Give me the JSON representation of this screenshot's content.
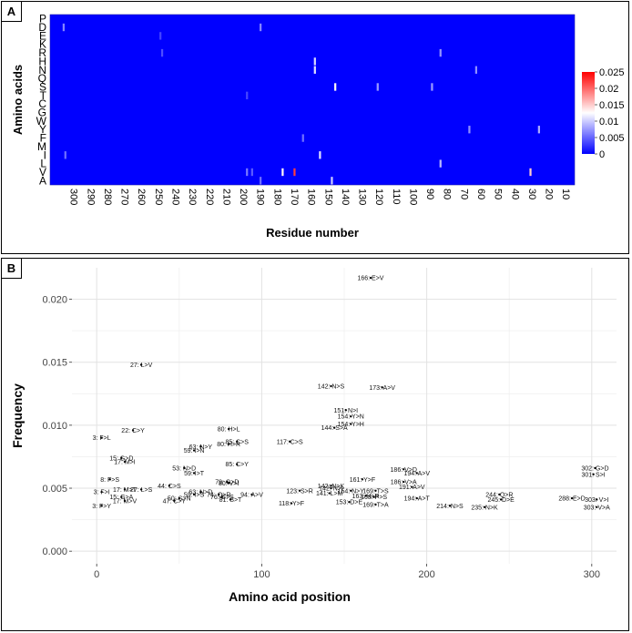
{
  "panels": [
    {
      "label": "A"
    },
    {
      "label": "B"
    }
  ],
  "chart_data": [
    {
      "type": "heatmap",
      "ylabel": "Amino acids",
      "xlabel": "Residue number",
      "rows": [
        "P",
        "D",
        "E",
        "K",
        "R",
        "H",
        "N",
        "Q",
        "S",
        "T",
        "C",
        "G",
        "W",
        "Y",
        "F",
        "M",
        "I",
        "L",
        "V",
        "A"
      ],
      "x_ticks": [
        300,
        290,
        280,
        270,
        260,
        250,
        240,
        230,
        220,
        210,
        200,
        190,
        180,
        170,
        160,
        150,
        140,
        130,
        120,
        110,
        100,
        90,
        80,
        70,
        60,
        50,
        40,
        30,
        20,
        10
      ],
      "x_axis_reversed": true,
      "x_range": [
        1,
        310
      ],
      "colorbar": {
        "min": 0,
        "max": 0.025,
        "ticks": [
          0,
          0.005,
          0.01,
          0.015,
          0.02,
          0.025
        ],
        "colors": [
          "#0000ff",
          "#ffffff",
          "#ff0000"
        ]
      },
      "highlight_cells": [
        {
          "row": "V",
          "residue": 166,
          "value": 0.022
        },
        {
          "row": "S",
          "residue": 142,
          "value": 0.013
        },
        {
          "row": "V",
          "residue": 173,
          "value": 0.013
        },
        {
          "row": "V",
          "residue": 27,
          "value": 0.015
        },
        {
          "row": "I",
          "residue": 151,
          "value": 0.011
        },
        {
          "row": "N",
          "residue": 154,
          "value": 0.011
        },
        {
          "row": "H",
          "residue": 154,
          "value": 0.0105
        },
        {
          "row": "A",
          "residue": 144,
          "value": 0.01
        },
        {
          "row": "Y",
          "residue": 22,
          "value": 0.0085
        },
        {
          "row": "L",
          "residue": 80,
          "value": 0.009
        },
        {
          "row": "D",
          "residue": 302,
          "value": 0.0065
        },
        {
          "row": "I",
          "residue": 301,
          "value": 0.0055
        },
        {
          "row": "S",
          "residue": 117,
          "value": 0.0075
        },
        {
          "row": "S",
          "residue": 85,
          "value": 0.0075
        },
        {
          "row": "Y",
          "residue": 63,
          "value": 0.007
        },
        {
          "row": "R",
          "residue": 80,
          "value": 0.0072
        },
        {
          "row": "N",
          "residue": 59,
          "value": 0.007
        },
        {
          "row": "D",
          "residue": 186,
          "value": 0.0065
        },
        {
          "row": "V",
          "residue": 194,
          "value": 0.006
        },
        {
          "row": "A",
          "residue": 186,
          "value": 0.0055
        },
        {
          "row": "V",
          "residue": 191,
          "value": 0.0045
        },
        {
          "row": "F",
          "residue": 161,
          "value": 0.0055
        },
        {
          "row": "T",
          "residue": 194,
          "value": 0.0035
        },
        {
          "row": "R",
          "residue": 244,
          "value": 0.0038
        },
        {
          "row": "E",
          "residue": 245,
          "value": 0.0033
        }
      ]
    },
    {
      "type": "scatter",
      "xlabel": "Amino acid position",
      "ylabel": "Frequency",
      "xlim": [
        -15,
        315
      ],
      "ylim": [
        -0.001,
        0.0225
      ],
      "x_ticks": [
        0,
        100,
        200,
        300
      ],
      "y_ticks": [
        0.0,
        0.005,
        0.01,
        0.015,
        0.02
      ],
      "y_tick_labels": [
        "0.000",
        "0.005",
        "0.010",
        "0.015",
        "0.020"
      ],
      "grid": true,
      "labeled_points": [
        {
          "x": 166,
          "y": 0.0217,
          "label": "166: E>V"
        },
        {
          "x": 27,
          "y": 0.0148,
          "label": "27: L>V"
        },
        {
          "x": 142,
          "y": 0.0131,
          "label": "142: N>S"
        },
        {
          "x": 173,
          "y": 0.013,
          "label": "173: A>V"
        },
        {
          "x": 151,
          "y": 0.0112,
          "label": "151: N>I"
        },
        {
          "x": 154,
          "y": 0.0107,
          "label": "154: Y>N"
        },
        {
          "x": 154,
          "y": 0.0101,
          "label": "154: Y>H"
        },
        {
          "x": 144,
          "y": 0.0098,
          "label": "144: S>A"
        },
        {
          "x": 80,
          "y": 0.0097,
          "label": "80: H>L"
        },
        {
          "x": 22,
          "y": 0.0096,
          "label": "22: C>Y"
        },
        {
          "x": 3,
          "y": 0.009,
          "label": "3: F>L"
        },
        {
          "x": 117,
          "y": 0.0087,
          "label": "117: C>S"
        },
        {
          "x": 85,
          "y": 0.0087,
          "label": "85: C>S"
        },
        {
          "x": 80,
          "y": 0.0085,
          "label": "80: H>R"
        },
        {
          "x": 63,
          "y": 0.0083,
          "label": "63: N>Y"
        },
        {
          "x": 59,
          "y": 0.008,
          "label": "59: I>N"
        },
        {
          "x": 15,
          "y": 0.0074,
          "label": "15: G>D"
        },
        {
          "x": 17,
          "y": 0.0071,
          "label": "17: M>I"
        },
        {
          "x": 85,
          "y": 0.0069,
          "label": "85: C>Y"
        },
        {
          "x": 53,
          "y": 0.0066,
          "label": "53: N>D"
        },
        {
          "x": 302,
          "y": 0.0066,
          "label": "302: G>D"
        },
        {
          "x": 186,
          "y": 0.0065,
          "label": "186: V>D"
        },
        {
          "x": 59,
          "y": 0.0062,
          "label": "59: I>T"
        },
        {
          "x": 194,
          "y": 0.0062,
          "label": "194: A>V"
        },
        {
          "x": 301,
          "y": 0.0061,
          "label": "301: S>I"
        },
        {
          "x": 8,
          "y": 0.0057,
          "label": "8: F>S"
        },
        {
          "x": 161,
          "y": 0.0057,
          "label": "161: Y>F"
        },
        {
          "x": 186,
          "y": 0.0055,
          "label": "186: V>A"
        },
        {
          "x": 79,
          "y": 0.0055,
          "label": "79: G>D"
        },
        {
          "x": 80,
          "y": 0.0054,
          "label": "80: V>I"
        },
        {
          "x": 44,
          "y": 0.0052,
          "label": "44: C>S"
        },
        {
          "x": 142,
          "y": 0.0052,
          "label": "142: N>K"
        },
        {
          "x": 142,
          "y": 0.005,
          "label": "142: N>I"
        },
        {
          "x": 191,
          "y": 0.0051,
          "label": "191: A>V"
        },
        {
          "x": 27,
          "y": 0.0049,
          "label": "27: L>S"
        },
        {
          "x": 17,
          "y": 0.0049,
          "label": "17: M>T"
        },
        {
          "x": 123,
          "y": 0.0048,
          "label": "123: S>R"
        },
        {
          "x": 154,
          "y": 0.0048,
          "label": "154: N>Y"
        },
        {
          "x": 169,
          "y": 0.0048,
          "label": "169: T>S"
        },
        {
          "x": 3,
          "y": 0.0047,
          "label": "3: F>I"
        },
        {
          "x": 63,
          "y": 0.0047,
          "label": "63: N>D"
        },
        {
          "x": 141,
          "y": 0.0046,
          "label": "141: L>M"
        },
        {
          "x": 94,
          "y": 0.0045,
          "label": "94: A>V"
        },
        {
          "x": 163,
          "y": 0.0044,
          "label": "163: H>R"
        },
        {
          "x": 59,
          "y": 0.0045,
          "label": "59: I>S"
        },
        {
          "x": 74,
          "y": 0.0045,
          "label": "74: Q>R"
        },
        {
          "x": 244,
          "y": 0.0045,
          "label": "244: Q>R"
        },
        {
          "x": 168,
          "y": 0.0043,
          "label": "168: P>S"
        },
        {
          "x": 76,
          "y": 0.0043,
          "label": "76: G>S"
        },
        {
          "x": 15,
          "y": 0.0043,
          "label": "15: G>A"
        },
        {
          "x": 194,
          "y": 0.0042,
          "label": "194: A>T"
        },
        {
          "x": 245,
          "y": 0.0041,
          "label": "245: D>E"
        },
        {
          "x": 81,
          "y": 0.0041,
          "label": "81: S>T"
        },
        {
          "x": 50,
          "y": 0.0042,
          "label": "50: S>N"
        },
        {
          "x": 288,
          "y": 0.0042,
          "label": "288: E>D"
        },
        {
          "x": 303,
          "y": 0.0041,
          "label": "303: V>I"
        },
        {
          "x": 17,
          "y": 0.004,
          "label": "17: M>V"
        },
        {
          "x": 47,
          "y": 0.004,
          "label": "47: C>Y"
        },
        {
          "x": 3,
          "y": 0.0036,
          "label": "3: F>Y"
        },
        {
          "x": 303,
          "y": 0.0035,
          "label": "303: V>A"
        },
        {
          "x": 153,
          "y": 0.0039,
          "label": "153: D>E"
        },
        {
          "x": 169,
          "y": 0.0037,
          "label": "169: T>A"
        },
        {
          "x": 118,
          "y": 0.0038,
          "label": "118: Y>F"
        },
        {
          "x": 214,
          "y": 0.0036,
          "label": "214: N>S"
        },
        {
          "x": 235,
          "y": 0.0035,
          "label": "235: N>K"
        }
      ],
      "background_points": 0
    }
  ]
}
